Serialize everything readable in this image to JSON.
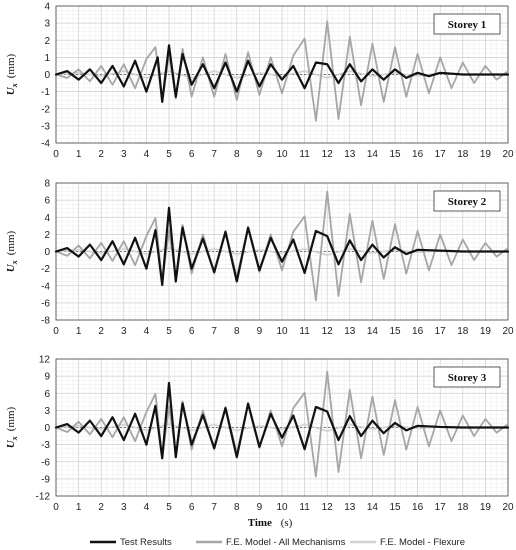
{
  "chart_data": [
    {
      "type": "line",
      "title": "Storey 1",
      "ylabel": {
        "symbol": "U",
        "subscript": "x",
        "unit": "(mm)"
      },
      "xlabel": {
        "text": "",
        "unit": ""
      },
      "xlim": [
        0,
        20
      ],
      "ylim": [
        -4,
        4
      ],
      "xticks": [
        "0",
        "1",
        "2",
        "3",
        "4",
        "5",
        "6",
        "7",
        "8",
        "9",
        "10",
        "11",
        "12",
        "13",
        "14",
        "15",
        "16",
        "17",
        "18",
        "19",
        "20"
      ],
      "yticks": [
        "4",
        "3",
        "2",
        "1",
        "0",
        "-1",
        "-2",
        "-3",
        "-4"
      ],
      "grid": true,
      "series": [
        {
          "name": "Test Results",
          "color": "#111111",
          "x": [
            0,
            0.5,
            1,
            1.5,
            2,
            2.5,
            3,
            3.5,
            4,
            4.5,
            4.7,
            5,
            5.3,
            5.6,
            6,
            6.5,
            7,
            7.5,
            8,
            8.5,
            9,
            9.5,
            10,
            10.5,
            11,
            11.5,
            12,
            12.5,
            13,
            13.5,
            14,
            14.5,
            15,
            15.5,
            16,
            16.5,
            17,
            18,
            19,
            20
          ],
          "y": [
            0,
            0.2,
            -0.3,
            0.3,
            -0.5,
            0.5,
            -0.7,
            0.8,
            -1.0,
            1.0,
            -1.6,
            1.7,
            -1.3,
            1.2,
            -0.6,
            0.6,
            -0.8,
            0.7,
            -1.0,
            0.8,
            -0.7,
            0.6,
            -0.3,
            0.5,
            -0.8,
            0.7,
            0.6,
            -0.5,
            0.6,
            -0.4,
            0.3,
            -0.3,
            0.3,
            -0.2,
            0.1,
            -0.1,
            0.1,
            0,
            0,
            0
          ]
        },
        {
          "name": "F.E. Model - All Mechanisms",
          "color": "#a6a6a6",
          "x": [
            0,
            0.5,
            1,
            1.5,
            2,
            2.5,
            3,
            3.5,
            4,
            4.4,
            4.7,
            5,
            5.3,
            5.6,
            6,
            6.5,
            7,
            7.5,
            8,
            8.5,
            9,
            9.5,
            10,
            10.5,
            11,
            11.5,
            12,
            12.5,
            13,
            13.5,
            14,
            14.5,
            15,
            15.5,
            16,
            16.5,
            17,
            17.5,
            18,
            18.5,
            19,
            19.5,
            20
          ],
          "y": [
            0,
            -0.2,
            0.3,
            -0.4,
            0.5,
            -0.6,
            0.6,
            -0.8,
            0.9,
            1.6,
            -1.6,
            1.2,
            -1.4,
            1.5,
            -1.3,
            1.0,
            -1.3,
            1.2,
            -1.5,
            1.3,
            -1.2,
            1.0,
            -1.1,
            1.1,
            2.1,
            -2.7,
            3.1,
            -2.6,
            2.2,
            -1.8,
            1.8,
            -1.6,
            1.6,
            -1.3,
            1.2,
            -1.1,
            1.0,
            -0.8,
            0.7,
            -0.5,
            0.5,
            -0.3,
            0.2
          ]
        },
        {
          "name": "F.E. Model - Flexure",
          "color": "#d2d2d2",
          "x": [
            0,
            1,
            2,
            3,
            4,
            5,
            6,
            7,
            8,
            9,
            10,
            11,
            12,
            13,
            14,
            15,
            16,
            17,
            18,
            19,
            20
          ],
          "y": [
            0,
            0.1,
            -0.1,
            0.2,
            -0.2,
            0.2,
            -0.2,
            0.2,
            -0.2,
            0.1,
            -0.1,
            0.2,
            -0.2,
            0.2,
            -0.1,
            0.1,
            -0.1,
            0.1,
            0,
            0,
            0
          ]
        }
      ]
    },
    {
      "type": "line",
      "title": "Storey 2",
      "ylabel": {
        "symbol": "U",
        "subscript": "x",
        "unit": "(mm)"
      },
      "xlabel": {
        "text": "",
        "unit": ""
      },
      "xlim": [
        0,
        20
      ],
      "ylim": [
        -8,
        8
      ],
      "xticks": [
        "0",
        "1",
        "2",
        "3",
        "4",
        "5",
        "6",
        "7",
        "8",
        "9",
        "10",
        "11",
        "12",
        "13",
        "14",
        "15",
        "16",
        "17",
        "18",
        "19",
        "20"
      ],
      "yticks": [
        "8",
        "6",
        "4",
        "2",
        "0",
        "-2",
        "-4",
        "-6",
        "-8"
      ],
      "grid": true,
      "series": [
        {
          "name": "Test Results",
          "color": "#111111",
          "x": [
            0,
            0.5,
            1,
            1.5,
            2,
            2.5,
            3,
            3.5,
            4,
            4.4,
            4.7,
            5,
            5.3,
            5.6,
            6,
            6.5,
            7,
            7.5,
            8,
            8.5,
            9,
            9.5,
            10,
            10.5,
            11,
            11.5,
            12,
            12.5,
            13,
            13.5,
            14,
            14.5,
            15,
            15.5,
            16,
            17,
            18,
            19,
            20
          ],
          "y": [
            0,
            0.4,
            -0.6,
            0.8,
            -1.0,
            1.2,
            -1.5,
            1.6,
            -2.0,
            2.5,
            -3.9,
            5.1,
            -3.5,
            2.8,
            -2.0,
            1.5,
            -2.4,
            2.3,
            -3.5,
            2.8,
            -2.2,
            1.6,
            -1.2,
            1.4,
            -2.5,
            2.4,
            1.8,
            -1.5,
            1.3,
            -1.0,
            0.8,
            -0.7,
            0.5,
            -0.3,
            0.2,
            0.1,
            0,
            0,
            0
          ]
        },
        {
          "name": "F.E. Model - All Mechanisms",
          "color": "#a6a6a6",
          "x": [
            0,
            0.5,
            1,
            1.5,
            2,
            2.5,
            3,
            3.5,
            4,
            4.4,
            4.7,
            5,
            5.3,
            5.6,
            6,
            6.5,
            7,
            7.5,
            8,
            8.5,
            9,
            9.5,
            10,
            10.5,
            11,
            11.5,
            12,
            12.5,
            13,
            13.5,
            14,
            14.5,
            15,
            15.5,
            16,
            16.5,
            17,
            17.5,
            18,
            18.5,
            19,
            19.5,
            20
          ],
          "y": [
            0,
            -0.5,
            0.7,
            -0.8,
            1.0,
            -1.1,
            1.2,
            -1.6,
            1.8,
            3.9,
            -3.6,
            2.5,
            -3.0,
            3.1,
            -2.6,
            2.0,
            -2.6,
            2.4,
            -3.0,
            2.7,
            -2.4,
            2.0,
            -2.2,
            2.3,
            4.1,
            -5.7,
            7.0,
            -5.2,
            4.4,
            -3.6,
            3.6,
            -3.2,
            3.2,
            -2.6,
            2.4,
            -2.2,
            2.0,
            -1.6,
            1.4,
            -1.0,
            1.0,
            -0.6,
            0.4
          ]
        },
        {
          "name": "F.E. Model - Flexure",
          "color": "#d2d2d2",
          "x": [
            0,
            1,
            2,
            3,
            4,
            5,
            6,
            7,
            8,
            9,
            10,
            11,
            12,
            13,
            14,
            15,
            16,
            17,
            18,
            19,
            20
          ],
          "y": [
            0,
            0.2,
            -0.2,
            0.3,
            -0.3,
            0.4,
            -0.3,
            0.3,
            -0.3,
            0.2,
            -0.2,
            0.3,
            -0.4,
            0.3,
            -0.2,
            0.2,
            -0.1,
            0.1,
            0,
            0,
            0
          ]
        }
      ]
    },
    {
      "type": "line",
      "title": "Storey 3",
      "ylabel": {
        "symbol": "U",
        "subscript": "x",
        "unit": "(mm)"
      },
      "xlabel": {
        "text": "Time",
        "unit": "(s)"
      },
      "xlim": [
        0,
        20
      ],
      "ylim": [
        -12,
        12
      ],
      "xticks": [
        "0",
        "1",
        "2",
        "3",
        "4",
        "5",
        "6",
        "7",
        "8",
        "9",
        "10",
        "11",
        "12",
        "13",
        "14",
        "15",
        "16",
        "17",
        "18",
        "19",
        "20"
      ],
      "yticks": [
        "12",
        "9",
        "6",
        "3",
        "0",
        "-3",
        "-6",
        "-9",
        "-12"
      ],
      "grid": true,
      "series": [
        {
          "name": "Test Results",
          "color": "#111111",
          "x": [
            0,
            0.5,
            1,
            1.5,
            2,
            2.5,
            3,
            3.5,
            4,
            4.4,
            4.7,
            5,
            5.3,
            5.6,
            6,
            6.5,
            7,
            7.5,
            8,
            8.5,
            9,
            9.5,
            10,
            10.5,
            11,
            11.5,
            12,
            12.5,
            13,
            13.5,
            14,
            14.5,
            15,
            15.5,
            16,
            17,
            18,
            19,
            20
          ],
          "y": [
            0,
            0.6,
            -0.9,
            1.2,
            -1.5,
            1.8,
            -2.2,
            2.4,
            -3.0,
            3.8,
            -5.4,
            7.8,
            -5.2,
            4.2,
            -3.0,
            2.2,
            -3.6,
            3.4,
            -5.2,
            4.2,
            -3.4,
            2.4,
            -1.8,
            2.1,
            -3.8,
            3.6,
            2.8,
            -2.2,
            2.0,
            -1.5,
            1.2,
            -1.0,
            0.8,
            -0.5,
            0.3,
            0.1,
            0,
            0,
            0
          ]
        },
        {
          "name": "F.E. Model - All Mechanisms",
          "color": "#a6a6a6",
          "x": [
            0,
            0.5,
            1,
            1.5,
            2,
            2.5,
            3,
            3.5,
            4,
            4.4,
            4.7,
            5,
            5.3,
            5.6,
            6,
            6.5,
            7,
            7.5,
            8,
            8.5,
            9,
            9.5,
            10,
            10.5,
            11,
            11.5,
            12,
            12.5,
            13,
            13.5,
            14,
            14.5,
            15,
            15.5,
            16,
            16.5,
            17,
            17.5,
            18,
            18.5,
            19,
            19.5,
            20
          ],
          "y": [
            0,
            -0.8,
            1.0,
            -1.2,
            1.5,
            -1.7,
            1.8,
            -2.4,
            2.7,
            5.9,
            -5.4,
            3.8,
            -4.5,
            4.6,
            -3.9,
            3.0,
            -3.9,
            3.6,
            -4.5,
            4.0,
            -3.6,
            3.0,
            -3.3,
            3.4,
            6.1,
            -8.6,
            9.8,
            -7.8,
            6.6,
            -5.4,
            5.4,
            -4.8,
            4.8,
            -3.9,
            3.6,
            -3.3,
            3.0,
            -2.4,
            2.1,
            -1.5,
            1.5,
            -0.9,
            0.6
          ]
        },
        {
          "name": "F.E. Model - Flexure",
          "color": "#d2d2d2",
          "x": [
            0,
            1,
            2,
            3,
            4,
            5,
            6,
            7,
            8,
            9,
            10,
            11,
            12,
            13,
            14,
            15,
            16,
            17,
            18,
            19,
            20
          ],
          "y": [
            0,
            0.3,
            -0.3,
            0.5,
            -0.5,
            0.6,
            -0.5,
            0.5,
            -0.5,
            0.3,
            -0.3,
            0.5,
            -0.6,
            0.5,
            -0.3,
            0.3,
            -0.2,
            0.1,
            0,
            0,
            0
          ]
        }
      ]
    }
  ],
  "legend": {
    "placement": "bottom",
    "items": [
      {
        "label": "Test Results",
        "color": "#111111"
      },
      {
        "label": "F.E. Model - All Mechanisms",
        "color": "#a6a6a6"
      },
      {
        "label": "F.E. Model - Flexure",
        "color": "#d2d2d2"
      }
    ]
  }
}
